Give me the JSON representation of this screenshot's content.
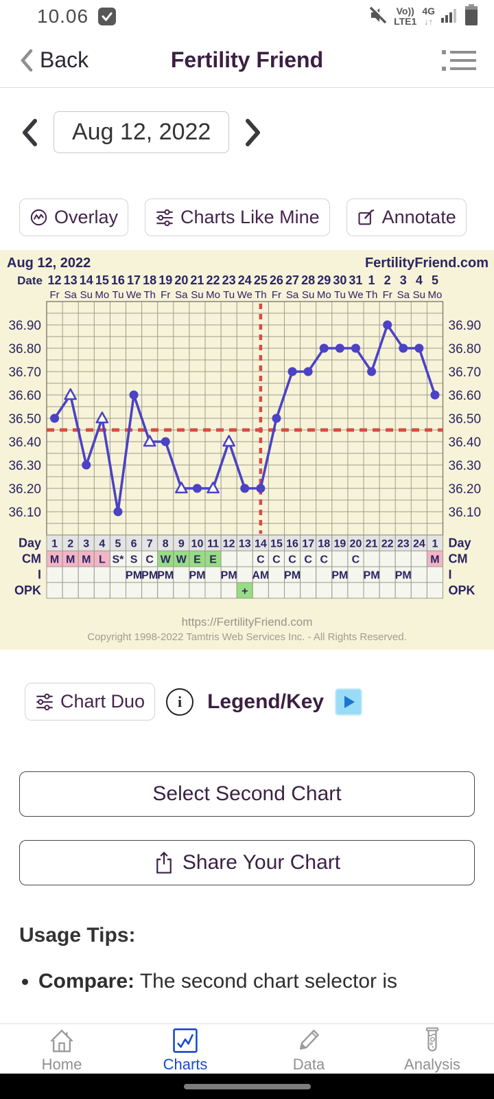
{
  "status_bar": {
    "time": "10.06",
    "carrier_line1": "Vo))",
    "carrier_line2": "LTE1",
    "network": "4G",
    "network_arrows": "↓↑"
  },
  "header": {
    "back_label": "Back",
    "title": "Fertility Friend"
  },
  "date_nav": {
    "date": "Aug 12, 2022"
  },
  "actions": {
    "overlay": "Overlay",
    "charts_like_mine": "Charts Like Mine",
    "annotate": "Annotate"
  },
  "chart": {
    "title_left": "Aug 12, 2022",
    "title_right": "FertilityFriend.com",
    "date_label": "Date",
    "row_labels": {
      "day": "Day",
      "cm": "CM",
      "i": "I",
      "opk": "OPK"
    },
    "footer_url": "https://FertilityFriend.com",
    "footer_copyright": "Copyright 1998-2022 Tamtris Web Services Inc. - All Rights Reserved."
  },
  "chart_data": {
    "type": "line",
    "title": "Aug 12, 2022",
    "unit": "°C",
    "x_dates": [
      "12",
      "13",
      "14",
      "15",
      "16",
      "17",
      "18",
      "19",
      "20",
      "21",
      "22",
      "23",
      "24",
      "25",
      "26",
      "27",
      "28",
      "29",
      "30",
      "31",
      "1",
      "2",
      "3",
      "4",
      "5"
    ],
    "x_dow": [
      "Fr",
      "Sa",
      "Su",
      "Mo",
      "Tu",
      "We",
      "Th",
      "Fr",
      "Sa",
      "Su",
      "Mo",
      "Tu",
      "We",
      "Th",
      "Fr",
      "Sa",
      "Su",
      "Mo",
      "Tu",
      "We",
      "Th",
      "Fr",
      "Sa",
      "Su",
      "Mo"
    ],
    "cycle_days": [
      "1",
      "2",
      "3",
      "4",
      "5",
      "6",
      "7",
      "8",
      "9",
      "10",
      "11",
      "12",
      "13",
      "14",
      "15",
      "16",
      "17",
      "18",
      "19",
      "20",
      "21",
      "22",
      "23",
      "24",
      "1"
    ],
    "series": [
      {
        "name": "BBT",
        "values": [
          36.5,
          36.6,
          36.3,
          36.5,
          36.1,
          36.6,
          36.4,
          36.4,
          36.2,
          36.2,
          36.2,
          36.4,
          36.2,
          36.2,
          36.5,
          36.7,
          36.7,
          36.8,
          36.8,
          36.8,
          36.7,
          36.9,
          36.8,
          36.8,
          36.6
        ],
        "marker_types": [
          "circle",
          "triangle",
          "circle",
          "triangle",
          "circle",
          "circle",
          "triangle",
          "circle",
          "triangle",
          "circle",
          "triangle",
          "triangle",
          "circle",
          "circle",
          "circle",
          "circle",
          "circle",
          "circle",
          "circle",
          "circle",
          "circle",
          "circle",
          "circle",
          "circle",
          "circle"
        ]
      }
    ],
    "coverline": 36.45,
    "ovulation_line_index": 13,
    "y_ticks": [
      "36.90",
      "36.80",
      "36.70",
      "36.60",
      "36.50",
      "36.40",
      "36.30",
      "36.20",
      "36.10"
    ],
    "ylim": [
      36.0,
      37.0
    ],
    "grid_step": 0.05,
    "rows": {
      "cm_values": [
        "M",
        "M",
        "M",
        "L",
        "S*",
        "S",
        "C",
        "W",
        "W",
        "E",
        "E",
        "",
        "",
        "C",
        "C",
        "C",
        "C",
        "C",
        "",
        "C",
        "",
        "",
        "",
        "",
        "M"
      ],
      "cm_styles": [
        "pink",
        "pink",
        "pink",
        "pink",
        "plain",
        "plain",
        "plain",
        "green",
        "green",
        "green",
        "green",
        "plain",
        "plain",
        "plain",
        "plain",
        "plain",
        "plain",
        "plain",
        "plain",
        "plain",
        "plain",
        "plain",
        "plain",
        "plain",
        "pink"
      ],
      "i_values": [
        "",
        "",
        "",
        "",
        "",
        "PM",
        "PM",
        "PM",
        "",
        "PM",
        "",
        "PM",
        "",
        "AM",
        "",
        "PM",
        "",
        "",
        "PM",
        "",
        "PM",
        "",
        "PM",
        "",
        ""
      ],
      "opk_values": [
        "",
        "",
        "",
        "",
        "",
        "",
        "",
        "",
        "",
        "",
        "",
        "",
        "+",
        "",
        "",
        "",
        "",
        "",
        "",
        "",
        "",
        "",
        "",
        "",
        ""
      ],
      "opk_styles": [
        "",
        "",
        "",
        "",
        "",
        "",
        "",
        "",
        "",
        "",
        "",
        "",
        "green",
        "",
        "",
        "",
        "",
        "",
        "",
        "",
        "",
        "",
        "",
        "",
        ""
      ]
    }
  },
  "secondary": {
    "chart_duo": "Chart Duo",
    "legend_key": "Legend/Key",
    "info_glyph": "i"
  },
  "buttons": {
    "select_second": "Select Second Chart",
    "share": "Share Your Chart"
  },
  "usage_tips": {
    "heading": "Usage Tips:",
    "bullet_term": "Compare:",
    "bullet_text": " The second chart selector is"
  },
  "bottom_nav": {
    "items": [
      {
        "label": "Home",
        "active": false
      },
      {
        "label": "Charts",
        "active": true
      },
      {
        "label": "Data",
        "active": false
      },
      {
        "label": "Analysis",
        "active": false
      }
    ]
  },
  "colors": {
    "chart_bg": "#f7f3d8",
    "line": "#4b42c6",
    "coverline_red": "#d94b41",
    "navy_text": "#2b2462",
    "grid": "#9c9c8c",
    "day_cell": "#e4e4e4",
    "plain_cell": "#f5f7ee",
    "pink_cell": "#f2b5c6",
    "green_cell": "#98dc84",
    "active_blue": "#1849cc",
    "purple_title": "#3b1f42"
  }
}
